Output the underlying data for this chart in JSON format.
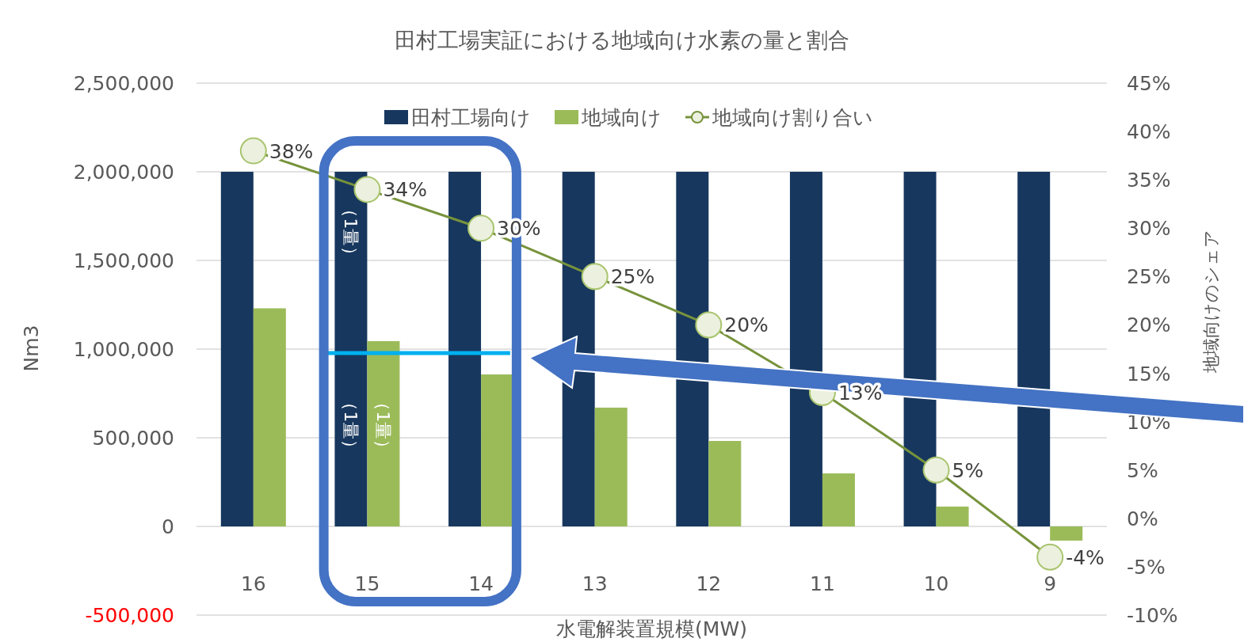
{
  "chart_data": {
    "type": "bar",
    "title": "田村工場実証における地域向け水素の量と割合",
    "xlabel": "水電解装置規模(MW)",
    "ylabel": "Nm3",
    "y2label": "地域向けのシェア",
    "categories": [
      "16",
      "15",
      "14",
      "13",
      "12",
      "11",
      "10",
      "9"
    ],
    "series": [
      {
        "name": "田村工場向け",
        "color": "#17375e",
        "values": [
          2000000,
          2000000,
          2000000,
          2000000,
          2000000,
          2000000,
          2000000,
          2000000
        ]
      },
      {
        "name": "地域向け",
        "color": "#9bbb59",
        "values": [
          1230000,
          1045000,
          857000,
          670000,
          482000,
          299000,
          112000,
          -80000
        ]
      },
      {
        "name": "地域向け割り合い",
        "type": "line",
        "axis": "y2",
        "color": "#77933c",
        "marker": "circle",
        "values": [
          38,
          34,
          30,
          25,
          20,
          13,
          5,
          -4
        ],
        "value_labels": [
          "38%",
          "34%",
          "30%",
          "25%",
          "20%",
          "13%",
          "5%",
          "-4%"
        ]
      }
    ],
    "ylim": [
      -500000,
      2500000
    ],
    "yticks": [
      {
        "value": -500000,
        "label": "-500,000"
      },
      {
        "value": 0,
        "label": "0"
      },
      {
        "value": 500000,
        "label": "500,000"
      },
      {
        "value": 1000000,
        "label": "1,000,000"
      },
      {
        "value": 1500000,
        "label": "1,500,000"
      },
      {
        "value": 2000000,
        "label": "2,000,000"
      },
      {
        "value": 2500000,
        "label": "2,500,000"
      }
    ],
    "y2lim": [
      -10,
      45
    ],
    "y2ticks": [
      {
        "value": -10,
        "label": "-10%"
      },
      {
        "value": -5,
        "label": "-5%"
      },
      {
        "value": 0,
        "label": "0%"
      },
      {
        "value": 5,
        "label": "5%"
      },
      {
        "value": 10,
        "label": "10%"
      },
      {
        "value": 15,
        "label": "15%"
      },
      {
        "value": 20,
        "label": "20%"
      },
      {
        "value": 25,
        "label": "25%"
      },
      {
        "value": 30,
        "label": "30%"
      },
      {
        "value": 35,
        "label": "35%"
      },
      {
        "value": 40,
        "label": "40%"
      },
      {
        "value": 45,
        "label": "45%"
      }
    ],
    "grid": "y",
    "legend": "top",
    "annotations": [
      "（1量）",
      "（1量）",
      "（1量）"
    ]
  }
}
